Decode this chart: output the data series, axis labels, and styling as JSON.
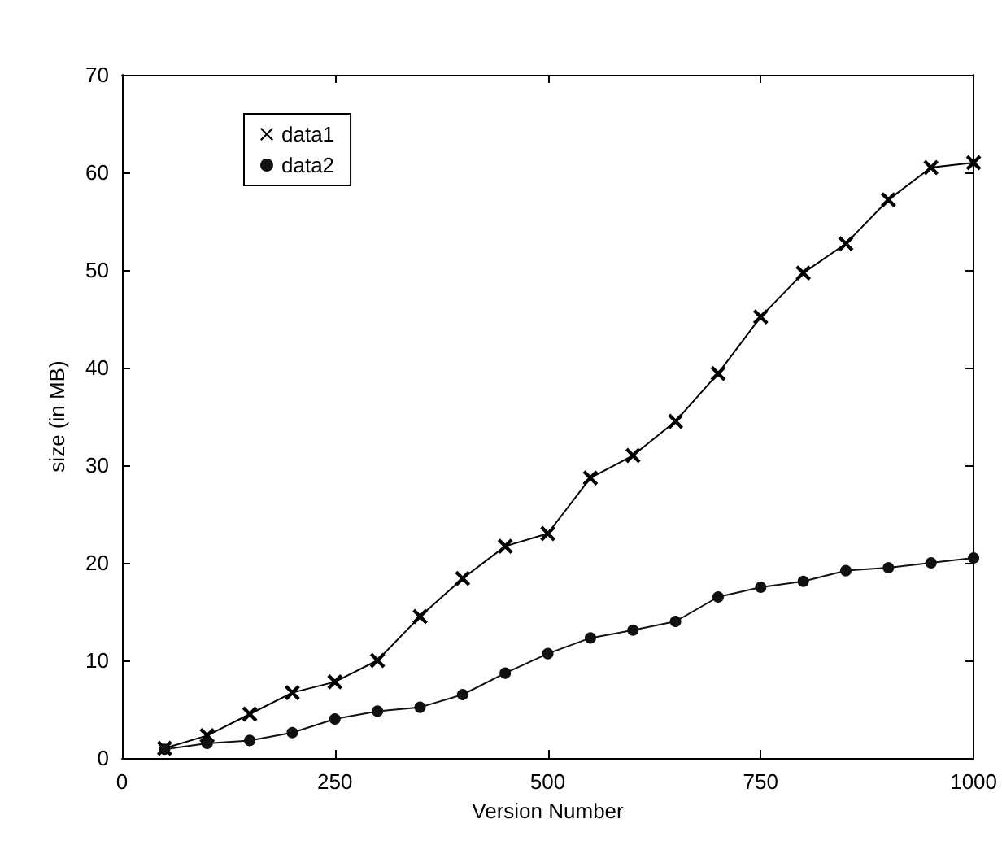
{
  "chart_data": {
    "type": "line",
    "xlabel": "Version Number",
    "ylabel": "size (in MB)",
    "x": [
      50,
      100,
      150,
      200,
      250,
      300,
      350,
      400,
      450,
      500,
      550,
      600,
      650,
      700,
      750,
      800,
      850,
      900,
      950,
      1000
    ],
    "series": [
      {
        "name": "data1",
        "color": "#000000",
        "marker": "cross",
        "values": [
          1,
          2.3,
          4.5,
          6.7,
          7.8,
          10,
          14.5,
          18.4,
          21.7,
          23,
          28.7,
          31,
          34.5,
          39.4,
          45.2,
          49.7,
          52.7,
          57.2,
          60.5,
          61
        ]
      },
      {
        "name": "data2",
        "color": "#111111",
        "marker": "circle",
        "values": [
          0.9,
          1.5,
          1.8,
          2.6,
          4,
          4.8,
          5.2,
          6.5,
          8.7,
          10.7,
          12.3,
          13.1,
          14,
          16.5,
          17.5,
          18.1,
          19.2,
          19.5,
          20,
          20.5
        ]
      }
    ],
    "xlim": [
      0,
      1000
    ],
    "xticks": [
      0,
      250,
      500,
      750,
      1000
    ],
    "ylim": [
      0,
      70
    ],
    "yticks": [
      0,
      10,
      20,
      30,
      40,
      50,
      60,
      70
    ],
    "grid": false,
    "legend": "top left",
    "line_style": "solid"
  }
}
